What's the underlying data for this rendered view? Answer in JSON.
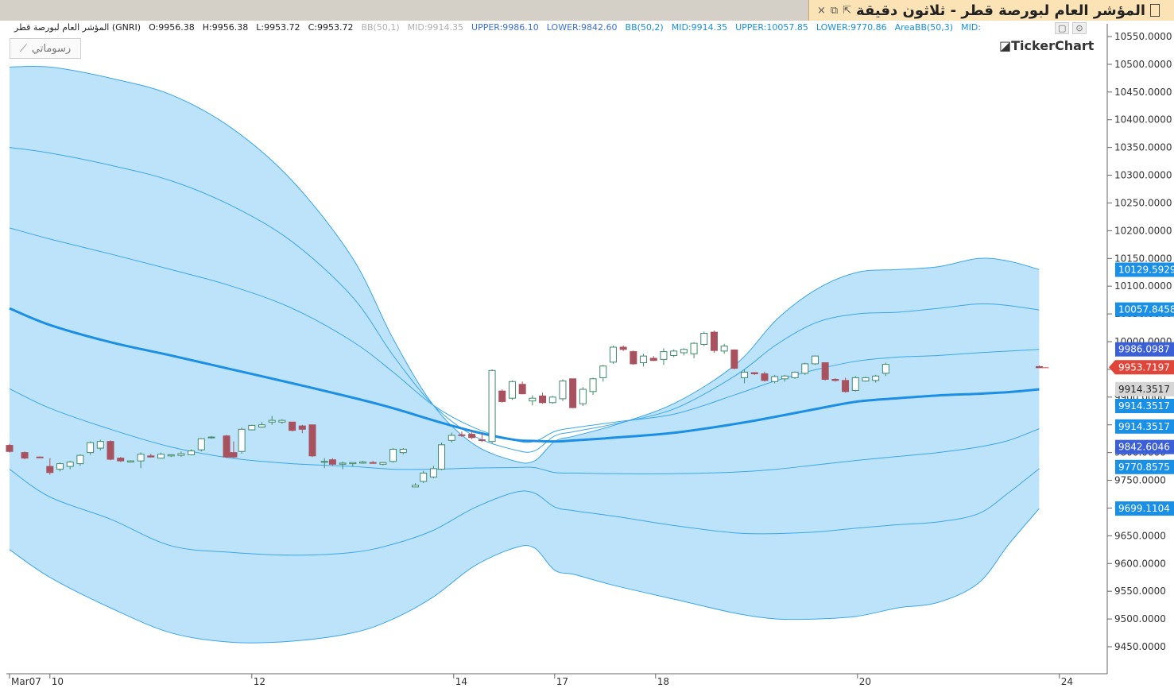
{
  "window": {
    "title": "المؤشر العام لبورصة قطر - ثلاثون دقيقة",
    "controls": {
      "close": "×",
      "restore": "⧉",
      "detach": "⇱"
    }
  },
  "header": {
    "symbol": "المؤشر العام لبورصة قطر (GNRI)",
    "open": "O:9956.38",
    "high": "H:9956.38",
    "low": "L:9953.72",
    "close": "C:9953.72",
    "bb1_name": "BB(50,1)",
    "bb1_mid": "MID:9914.35",
    "bb1_upper": "UPPER:9986.10",
    "bb1_lower": "LOWER:9842.60",
    "bb2_name": "BB(50,2)",
    "bb2_mid": "MID:9914.35",
    "bb2_upper": "UPPER:10057.85",
    "bb2_lower": "LOWER:9770.86",
    "bb3_name": "AreaBB(50,3)",
    "bb3_mid": "MID:"
  },
  "toolbar": {
    "drawings_label": "رسوماتي"
  },
  "branding": {
    "logo": "◪TickerChart"
  },
  "colors": {
    "band_fill": "#bde3fb",
    "band_line": "#3aa6ee",
    "mid_line": "#1b8fe6",
    "candle_up_fill": "#ffffff",
    "candle_up_border": "#3e8a6a",
    "candle_down": "#a9525f",
    "last_price": "#e0453a",
    "tag_blue": "#1a8fe6",
    "tag_navy": "#3b5fd6",
    "tag_gray": "#d6d6d6"
  },
  "chart_data": {
    "type": "candlestick",
    "y_axis_ticks": [
      "10550.0000",
      "10500.0000",
      "10450.0000",
      "10400.0000",
      "10350.0000",
      "10300.0000",
      "10250.0000",
      "10200.0000",
      "10150.0000",
      "10100.0000",
      "10050.0000",
      "10000.0000",
      "9950.0000",
      "9900.0000",
      "9850.0000",
      "9800.0000",
      "9750.0000",
      "9700.0000",
      "9650.0000",
      "9600.0000",
      "9550.0000",
      "9500.0000",
      "9450.0000"
    ],
    "ylim": [
      9415,
      10560
    ],
    "x_axis_labels": [
      "Mar07",
      "10",
      "12",
      "14",
      "17",
      "18",
      "20",
      "24"
    ],
    "x_label_index": [
      0,
      4,
      24,
      44,
      54,
      64,
      84,
      104
    ],
    "bands": {
      "x_index": [
        0,
        4,
        10,
        16,
        22,
        28,
        34,
        38,
        42,
        46,
        50,
        52,
        54,
        56,
        60,
        66,
        72,
        76,
        80,
        84,
        88,
        92,
        96,
        99,
        102
      ],
      "upper3": [
        10495,
        10495,
        10475,
        10445,
        10385,
        10290,
        10150,
        10005,
        9885,
        9815,
        9785,
        9785,
        9820,
        9830,
        9850,
        9890,
        9960,
        10040,
        10095,
        10125,
        10130,
        10135,
        10150,
        10145,
        10130
      ],
      "upper2": [
        10350,
        10340,
        10318,
        10290,
        10245,
        10180,
        10080,
        9975,
        9885,
        9830,
        9805,
        9803,
        9830,
        9838,
        9852,
        9880,
        9940,
        9995,
        10035,
        10050,
        10053,
        10060,
        10068,
        10065,
        10057
      ],
      "upper1": [
        10205,
        10185,
        10158,
        10130,
        10100,
        10060,
        10000,
        9945,
        9885,
        9845,
        9822,
        9820,
        9838,
        9845,
        9855,
        9870,
        9905,
        9930,
        9950,
        9965,
        9972,
        9975,
        9980,
        9983,
        9986
      ],
      "mid": [
        10060,
        10030,
        9999,
        9975,
        9950,
        9925,
        9899,
        9880,
        9858,
        9838,
        9823,
        9821,
        9820,
        9822,
        9827,
        9836,
        9852,
        9865,
        9879,
        9892,
        9898,
        9903,
        9906,
        9909,
        9914
      ],
      "lower1": [
        9915,
        9880,
        9842,
        9810,
        9790,
        9780,
        9775,
        9770,
        9770,
        9772,
        9773,
        9773,
        9764,
        9763,
        9762,
        9762,
        9765,
        9770,
        9778,
        9786,
        9793,
        9800,
        9810,
        9822,
        9843
      ],
      "lower2": [
        9770,
        9720,
        9680,
        9632,
        9620,
        9615,
        9620,
        9635,
        9660,
        9700,
        9728,
        9727,
        9702,
        9695,
        9685,
        9668,
        9655,
        9654,
        9657,
        9664,
        9670,
        9675,
        9690,
        9728,
        9771
      ],
      "lower3": [
        9625,
        9575,
        9520,
        9475,
        9458,
        9460,
        9475,
        9500,
        9540,
        9595,
        9628,
        9628,
        9588,
        9580,
        9560,
        9535,
        9510,
        9500,
        9500,
        9505,
        9520,
        9530,
        9565,
        9635,
        9699
      ]
    },
    "candles": [
      [
        9813,
        9816,
        9800,
        9802
      ],
      [
        9800,
        9802,
        9788,
        9790
      ],
      [
        9792,
        9793,
        9790,
        9791
      ],
      [
        9775,
        9790,
        9760,
        9764
      ],
      [
        9770,
        9782,
        9766,
        9780
      ],
      [
        9775,
        9785,
        9770,
        9783
      ],
      [
        9780,
        9797,
        9776,
        9795
      ],
      [
        9800,
        9820,
        9796,
        9818
      ],
      [
        9808,
        9823,
        9804,
        9820
      ],
      [
        9820,
        9822,
        9786,
        9788
      ],
      [
        9790,
        9792,
        9783,
        9785
      ],
      [
        9783,
        9786,
        9782,
        9785
      ],
      [
        9785,
        9800,
        9772,
        9797
      ],
      [
        9794,
        9798,
        9791,
        9792
      ],
      [
        9790,
        9800,
        9790,
        9797
      ],
      [
        9794,
        9797,
        9792,
        9796
      ],
      [
        9795,
        9802,
        9792,
        9798
      ],
      [
        9796,
        9806,
        9795,
        9803
      ],
      [
        9805,
        9826,
        9802,
        9825
      ],
      [
        9827,
        9830,
        9825,
        9828
      ],
      [
        9830,
        9832,
        9790,
        9792
      ],
      [
        9800,
        9820,
        9790,
        9792
      ],
      [
        9802,
        9845,
        9798,
        9842
      ],
      [
        9841,
        9850,
        9840,
        9849
      ],
      [
        9846,
        9855,
        9845,
        9850
      ],
      [
        9855,
        9866,
        9850,
        9858
      ],
      [
        9855,
        9860,
        9852,
        9858
      ],
      [
        9855,
        9855,
        9838,
        9840
      ],
      [
        9848,
        9850,
        9835,
        9842
      ],
      [
        9850,
        9850,
        9792,
        9794
      ],
      [
        9784,
        9790,
        9772,
        9784
      ],
      [
        9787,
        9790,
        9776,
        9779
      ],
      [
        9779,
        9784,
        9770,
        9781
      ],
      [
        9780,
        9782,
        9775,
        9782
      ],
      [
        9781,
        9785,
        9780,
        9783
      ],
      [
        9782,
        9785,
        9780,
        9781
      ],
      [
        9779,
        9783,
        9777,
        9782
      ],
      [
        9784,
        9808,
        9782,
        9806
      ],
      [
        9800,
        9808,
        9797,
        9806
      ],
      [
        9738,
        9745,
        9738,
        9741
      ],
      [
        9748,
        9767,
        9745,
        9763
      ],
      [
        9756,
        9776,
        9754,
        9771
      ],
      [
        9770,
        9818,
        9768,
        9814
      ],
      [
        9822,
        9836,
        9818,
        9831
      ],
      [
        9832,
        9838,
        9828,
        9831
      ],
      [
        9833,
        9840,
        9824,
        9827
      ],
      [
        9823,
        9835,
        9819,
        9822
      ],
      [
        9820,
        9950,
        9816,
        9948
      ],
      [
        9911,
        9914,
        9890,
        9892
      ],
      [
        9898,
        9930,
        9895,
        9928
      ],
      [
        9923,
        9928,
        9905,
        9906
      ],
      [
        9893,
        9903,
        9885,
        9898
      ],
      [
        9902,
        9908,
        9888,
        9890
      ],
      [
        9890,
        9902,
        9888,
        9900
      ],
      [
        9897,
        9932,
        9893,
        9929
      ],
      [
        9933,
        9933,
        9880,
        9881
      ],
      [
        9888,
        9918,
        9884,
        9914
      ],
      [
        9910,
        9935,
        9904,
        9933
      ],
      [
        9935,
        9958,
        9928,
        9956
      ],
      [
        9963,
        9993,
        9960,
        9990
      ],
      [
        9990,
        9993,
        9983,
        9986
      ],
      [
        9982,
        9984,
        9958,
        9960
      ],
      [
        9962,
        9978,
        9955,
        9974
      ],
      [
        9970,
        9974,
        9965,
        9966
      ],
      [
        9968,
        9988,
        9958,
        9982
      ],
      [
        9975,
        9986,
        9972,
        9983
      ],
      [
        9980,
        9988,
        9975,
        9986
      ],
      [
        9978,
        9999,
        9970,
        9997
      ],
      [
        9995,
        10018,
        9992,
        10015
      ],
      [
        10017,
        10020,
        9980,
        9984
      ],
      [
        9983,
        9996,
        9978,
        9992
      ],
      [
        9985,
        9986,
        9950,
        9952
      ],
      [
        9935,
        9950,
        9925,
        9945
      ],
      [
        9944,
        9945,
        9940,
        9942
      ],
      [
        9942,
        9946,
        9928,
        9930
      ],
      [
        9928,
        9940,
        9925,
        9937
      ],
      [
        9933,
        9940,
        9928,
        9938
      ],
      [
        9935,
        9946,
        9933,
        9945
      ],
      [
        9943,
        9962,
        9940,
        9960
      ],
      [
        9960,
        9975,
        9958,
        9974
      ],
      [
        9962,
        9962,
        9930,
        9932
      ],
      [
        9932,
        9934,
        9928,
        9930
      ],
      [
        9930,
        9935,
        9908,
        9910
      ],
      [
        9912,
        9938,
        9910,
        9935
      ],
      [
        9929,
        9937,
        9928,
        9935
      ],
      [
        9930,
        9940,
        9926,
        9938
      ],
      [
        9943,
        9962,
        9938,
        9959
      ],
      [
        9955,
        9957,
        9953,
        9953
      ]
    ],
    "candle_x_index": [
      0,
      1.5,
      3,
      4,
      5,
      6,
      7,
      8,
      9,
      10,
      11,
      12,
      13,
      14,
      15,
      16,
      17,
      18,
      19,
      20,
      21.5,
      22.2,
      23,
      24,
      25,
      26,
      27,
      28,
      29,
      30,
      31.2,
      32,
      33,
      34,
      35,
      36,
      37,
      38,
      39,
      40.2,
      41,
      42,
      42.8,
      43.8,
      44.8,
      45.8,
      46.8,
      47.8,
      48.8,
      49.8,
      50.8,
      51.8,
      52.8,
      53.8,
      54.8,
      55.8,
      56.8,
      57.8,
      58.8,
      59.8,
      60.8,
      61.8,
      62.8,
      63.8,
      64.8,
      65.8,
      66.8,
      67.8,
      68.8,
      69.8,
      70.8,
      71.8,
      72.8,
      73.8,
      74.8,
      75.8,
      76.8,
      77.8,
      78.8,
      79.8,
      80.8,
      81.8,
      82.8,
      83.8,
      84.8,
      85.8,
      86.8,
      102
    ],
    "price_tags": [
      {
        "label": "10129.5929",
        "value": 10129.5929,
        "style": "blue"
      },
      {
        "label": "10057.8458",
        "value": 10057.8458,
        "style": "blue"
      },
      {
        "label": "9986.0987",
        "value": 9986.0987,
        "style": "navy"
      },
      {
        "label": "9953.7197",
        "value": 9953.7197,
        "style": "last"
      },
      {
        "label": "9914.3517",
        "value": 9914.3517,
        "style": "gray"
      },
      {
        "label": "9914.3517",
        "value": 9884,
        "style": "blue"
      },
      {
        "label": "9914.3517",
        "value": 9847,
        "style": "blue"
      },
      {
        "label": "9842.6046",
        "value": 9810,
        "style": "navy"
      },
      {
        "label": "9770.8575",
        "value": 9774,
        "style": "blue"
      },
      {
        "label": "9699.1104",
        "value": 9699.1104,
        "style": "blue"
      }
    ]
  }
}
